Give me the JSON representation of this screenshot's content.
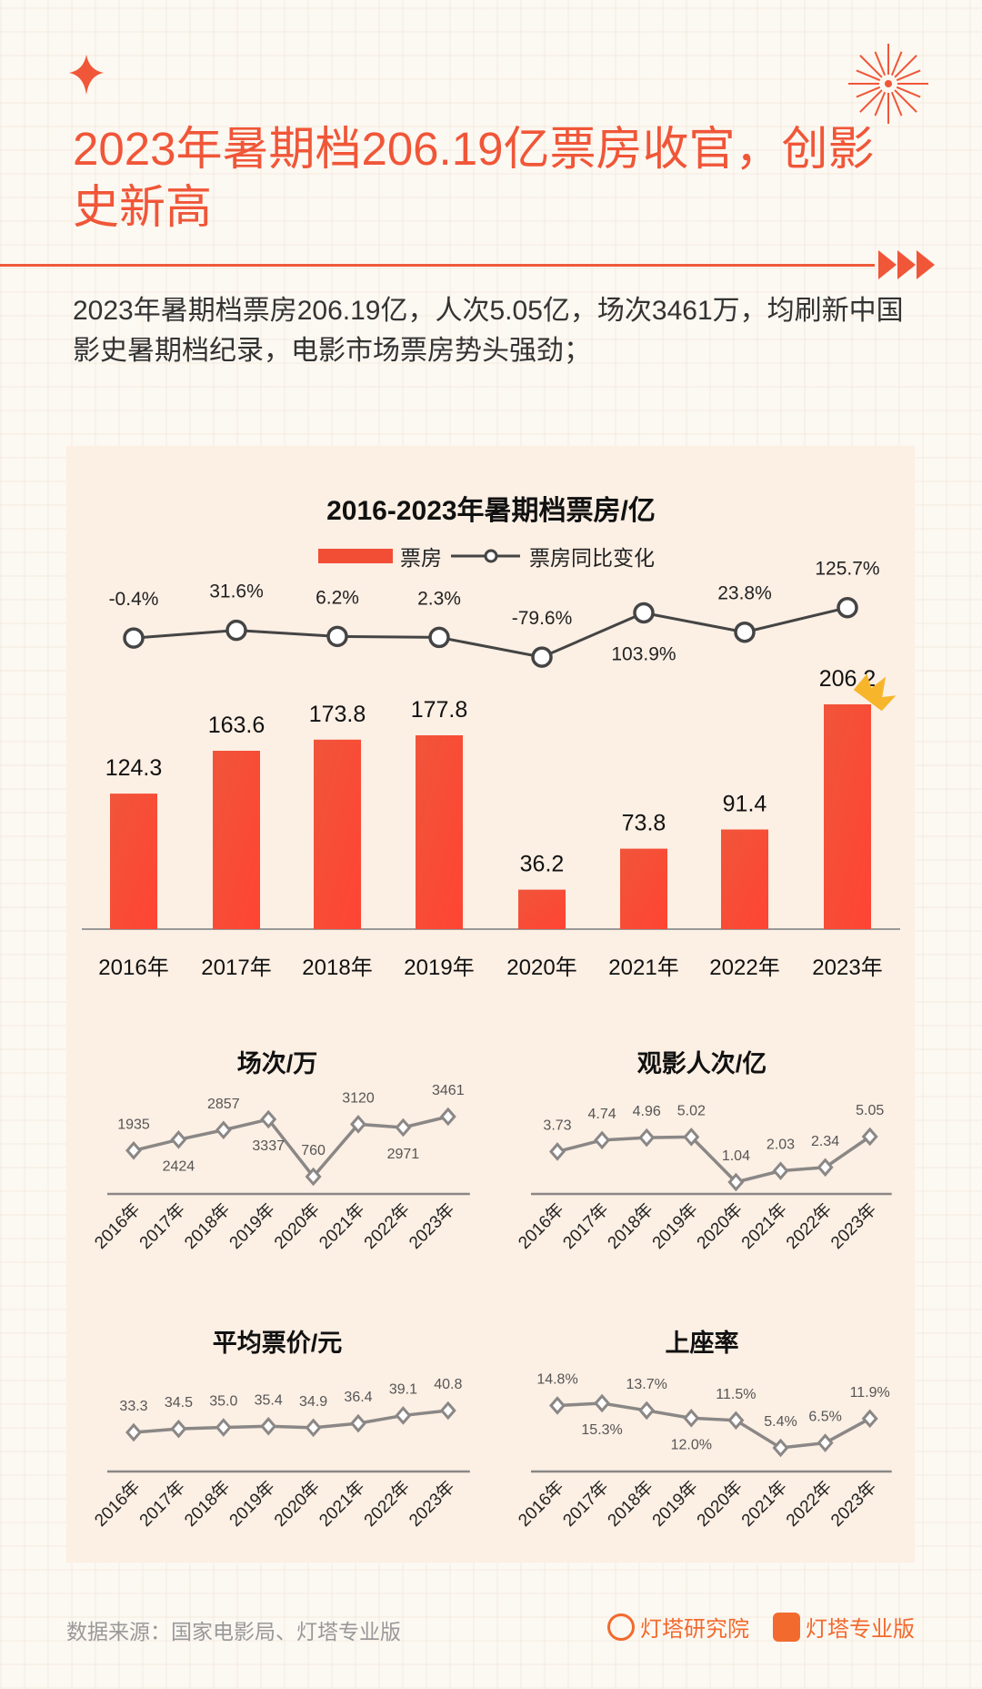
{
  "header": {
    "title": "2023年暑期档206.19亿票房收官，创影史新高",
    "subtitle": "2023年暑期档票房206.19亿，人次5.05亿，场次3461万，均刷新中国影史暑期档纪录，电影市场票房势头强劲；"
  },
  "colors": {
    "accent": "#f05638",
    "bar": "#f24e36",
    "line": "#444444",
    "small_line": "#8a8786",
    "panel": "#fcefe4"
  },
  "chart_data": [
    {
      "type": "bar+line",
      "title": "2016-2023年暑期档票房/亿",
      "categories": [
        "2016年",
        "2017年",
        "2018年",
        "2019年",
        "2020年",
        "2021年",
        "2022年",
        "2023年"
      ],
      "legend": {
        "placement": "top"
      },
      "series": [
        {
          "name": "票房",
          "type": "bar",
          "values": [
            124.3,
            163.6,
            173.8,
            177.8,
            36.2,
            73.8,
            91.4,
            206.2
          ],
          "labels": [
            "124.3",
            "163.6",
            "173.8",
            "177.8",
            "36.2",
            "73.8",
            "91.4",
            "206.2"
          ]
        },
        {
          "name": "票房同比变化",
          "type": "line",
          "values": [
            -0.4,
            31.6,
            6.2,
            2.3,
            -79.6,
            103.9,
            23.8,
            125.7
          ],
          "labels": [
            "-0.4%",
            "31.6%",
            "6.2%",
            "2.3%",
            "-79.6%",
            "103.9%",
            "23.8%",
            "125.7%"
          ]
        }
      ],
      "icon": "crown-icon"
    },
    {
      "type": "line",
      "title": "场次/万",
      "categories": [
        "2016年",
        "2017年",
        "2018年",
        "2019年",
        "2020年",
        "2021年",
        "2022年",
        "2023年"
      ],
      "values": [
        1935,
        2424,
        2857,
        3337,
        760,
        3120,
        2971,
        3461
      ],
      "labels": [
        "1935",
        "2424",
        "2857",
        "3337",
        "760",
        "3120",
        "2971",
        "3461"
      ]
    },
    {
      "type": "line",
      "title": "观影人次/亿",
      "categories": [
        "2016年",
        "2017年",
        "2018年",
        "2019年",
        "2020年",
        "2021年",
        "2022年",
        "2023年"
      ],
      "values": [
        3.73,
        4.74,
        4.96,
        5.02,
        1.04,
        2.03,
        2.34,
        5.05
      ],
      "labels": [
        "3.73",
        "4.74",
        "4.96",
        "5.02",
        "1.04",
        "2.03",
        "2.34",
        "5.05"
      ]
    },
    {
      "type": "line",
      "title": "平均票价/元",
      "categories": [
        "2016年",
        "2017年",
        "2018年",
        "2019年",
        "2020年",
        "2021年",
        "2022年",
        "2023年"
      ],
      "values": [
        33.3,
        34.5,
        35.0,
        35.4,
        34.9,
        36.4,
        39.1,
        40.8
      ],
      "labels": [
        "33.3",
        "34.5",
        "35.0",
        "35.4",
        "34.9",
        "36.4",
        "39.1",
        "40.8"
      ]
    },
    {
      "type": "line",
      "title": "上座率",
      "categories": [
        "2016年",
        "2017年",
        "2018年",
        "2019年",
        "2020年",
        "2021年",
        "2022年",
        "2023年"
      ],
      "values": [
        14.8,
        15.3,
        13.7,
        12.0,
        11.5,
        5.4,
        6.5,
        11.9
      ],
      "labels": [
        "14.8%",
        "15.3%",
        "13.7%",
        "12.0%",
        "11.5%",
        "5.4%",
        "6.5%",
        "11.9%"
      ]
    }
  ],
  "footer": {
    "source": "数据来源：国家电影局、灯塔专业版",
    "brand1": "灯塔研究院",
    "brand2": "灯塔专业版"
  }
}
